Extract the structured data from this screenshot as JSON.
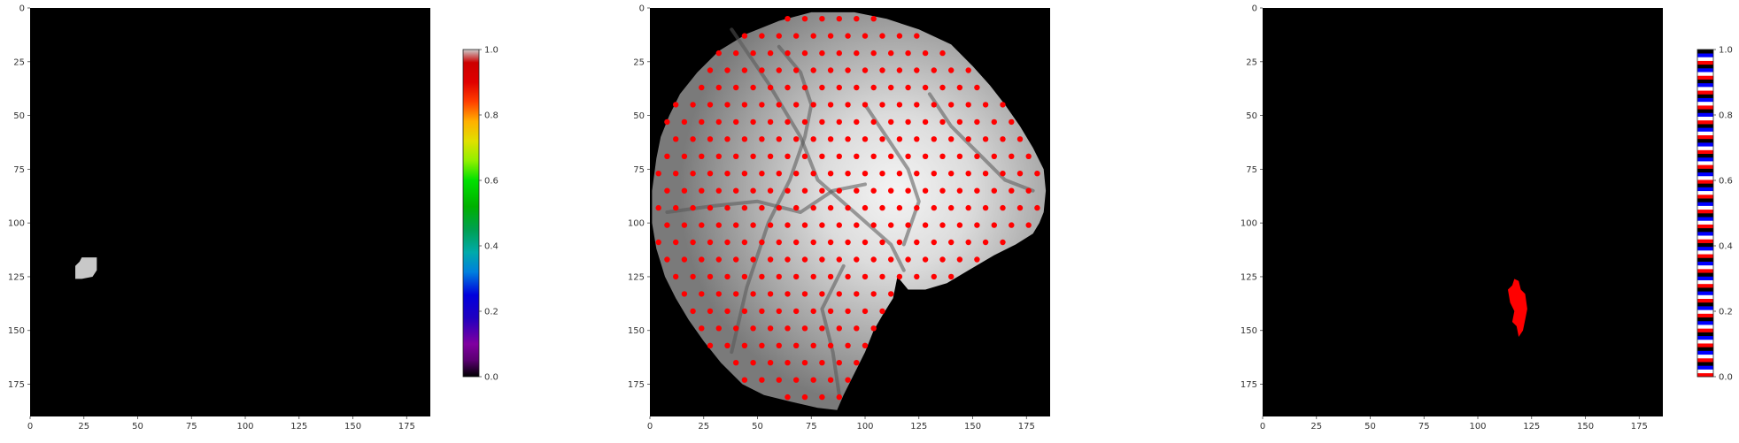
{
  "chart_data": [
    {
      "type": "heatmap",
      "title": "",
      "xlabel": "",
      "ylabel": "",
      "xlim": [
        0,
        186
      ],
      "ylim": [
        190,
        0
      ],
      "xticks": [
        "0",
        "25",
        "50",
        "75",
        "100",
        "125",
        "150",
        "175"
      ],
      "yticks": [
        "0",
        "25",
        "50",
        "75",
        "100",
        "125",
        "150",
        "175"
      ],
      "background": "#000000",
      "region": {
        "label": "activation blob",
        "color": "#c8c8c8",
        "x_range": [
          21,
          31
        ],
        "y_range": [
          116,
          126
        ]
      },
      "colorbar": {
        "cmap": "nipy_spectral",
        "ticks": [
          "0.0",
          "0.2",
          "0.4",
          "0.6",
          "0.8",
          "1.0"
        ],
        "range": [
          0.0,
          1.0
        ]
      }
    },
    {
      "type": "scatter",
      "title": "",
      "xlabel": "",
      "ylabel": "",
      "xlim": [
        0,
        186
      ],
      "ylim": [
        190,
        0
      ],
      "xticks": [
        "0",
        "25",
        "50",
        "75",
        "100",
        "125",
        "150",
        "175"
      ],
      "yticks": [
        "0",
        "25",
        "50",
        "75",
        "100",
        "125",
        "150",
        "175"
      ],
      "background_image": "grayscale cortical surface (brain imaging window)",
      "point_color": "#ff0000",
      "grid_spacing": 8
    },
    {
      "type": "heatmap",
      "title": "",
      "xlabel": "",
      "ylabel": "",
      "xlim": [
        0,
        186
      ],
      "ylim": [
        190,
        0
      ],
      "xticks": [
        "0",
        "25",
        "50",
        "75",
        "100",
        "125",
        "150",
        "175"
      ],
      "yticks": [
        "0",
        "25",
        "50",
        "75",
        "100",
        "125",
        "150",
        "175"
      ],
      "background": "#000000",
      "region": {
        "label": "activation region",
        "color": "#ff0000",
        "x_range": [
          113,
          124
        ],
        "y_range": [
          126,
          153
        ]
      },
      "colorbar": {
        "cmap": "flag",
        "ticks": [
          "0.0",
          "0.2",
          "0.4",
          "0.6",
          "0.8",
          "1.0"
        ],
        "range": [
          0.0,
          1.0
        ]
      }
    }
  ]
}
